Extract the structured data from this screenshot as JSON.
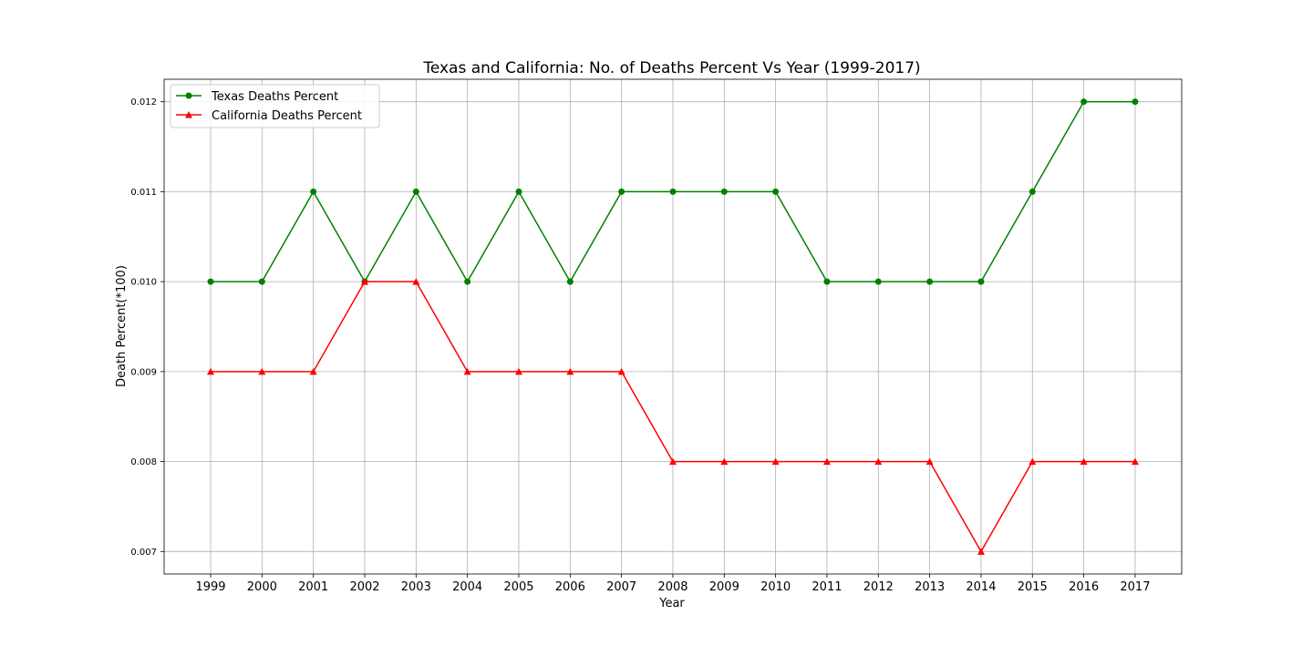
{
  "chart_data": {
    "type": "line",
    "title": "Texas and California: No. of Deaths Percent Vs Year (1999-2017)",
    "xlabel": "Year",
    "ylabel": "Death Percent(*100)",
    "x": [
      1999,
      2000,
      2001,
      2002,
      2003,
      2004,
      2005,
      2006,
      2007,
      2008,
      2009,
      2010,
      2011,
      2012,
      2013,
      2014,
      2015,
      2016,
      2017
    ],
    "x_tick_labels": [
      "1999",
      "2000",
      "2001",
      "2002",
      "2003",
      "2004",
      "2005",
      "2006",
      "2007",
      "2008",
      "2009",
      "2010",
      "2011",
      "2012",
      "2013",
      "2014",
      "2015",
      "2016",
      "2017"
    ],
    "yticks": [
      0.007,
      0.008,
      0.009,
      0.01,
      0.011,
      0.012
    ],
    "y_tick_labels": [
      "0.007",
      "0.008",
      "0.009",
      "0.010",
      "0.011",
      "0.012"
    ],
    "ylim": [
      0.00675,
      0.01225
    ],
    "grid": true,
    "legend_position": "upper-left",
    "series": [
      {
        "name": "Texas Deaths Percent",
        "color": "#008000",
        "marker": "circle",
        "values": [
          0.01,
          0.01,
          0.011,
          0.01,
          0.011,
          0.01,
          0.011,
          0.01,
          0.011,
          0.011,
          0.011,
          0.011,
          0.01,
          0.01,
          0.01,
          0.01,
          0.011,
          0.012,
          0.012
        ]
      },
      {
        "name": "California Deaths Percent",
        "color": "#ff0000",
        "marker": "triangle",
        "values": [
          0.009,
          0.009,
          0.009,
          0.01,
          0.01,
          0.009,
          0.009,
          0.009,
          0.009,
          0.008,
          0.008,
          0.008,
          0.008,
          0.008,
          0.008,
          0.007,
          0.008,
          0.008,
          0.008
        ]
      }
    ]
  }
}
